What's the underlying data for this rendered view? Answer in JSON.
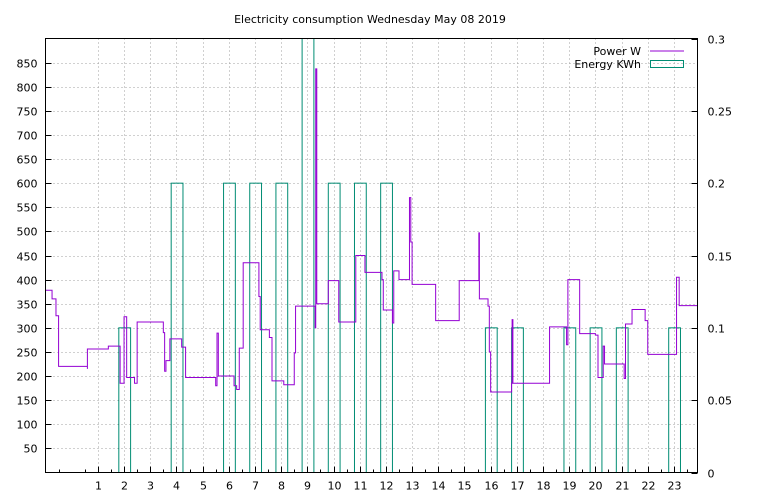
{
  "chart_data": {
    "type": "line",
    "title": "Electricity consumption Wednesday May 08 2019",
    "grid": true,
    "legend_position": "top-right",
    "x": {
      "range": [
        -1,
        23.9
      ],
      "ticks": [
        1,
        2,
        3,
        4,
        5,
        6,
        7,
        8,
        9,
        10,
        11,
        12,
        13,
        14,
        15,
        16,
        17,
        18,
        19,
        20,
        21,
        22,
        23
      ]
    },
    "y_left": {
      "range": [
        0,
        900
      ],
      "ticks": [
        50,
        100,
        150,
        200,
        250,
        300,
        350,
        400,
        450,
        500,
        550,
        600,
        650,
        700,
        750,
        800,
        850
      ]
    },
    "y_right": {
      "range": [
        0,
        0.3
      ],
      "ticks": [
        "0",
        "0.05",
        "0.1",
        "0.15",
        "0.2",
        "0.25",
        "0.3"
      ],
      "tick_values": [
        0,
        0.05,
        0.1,
        0.15,
        0.2,
        0.25,
        0.3
      ]
    },
    "series": [
      {
        "name": "Power W",
        "axis": "left",
        "color": "#9400d3",
        "points": [
          [
            -1.0,
            378
          ],
          [
            -0.75,
            378
          ],
          [
            -0.75,
            360
          ],
          [
            -0.6,
            360
          ],
          [
            -0.6,
            325
          ],
          [
            -0.5,
            325
          ],
          [
            -0.5,
            220
          ],
          [
            0.6,
            220
          ],
          [
            0.6,
            215
          ],
          [
            0.6,
            256
          ],
          [
            1.4,
            256
          ],
          [
            1.4,
            262
          ],
          [
            1.85,
            262
          ],
          [
            1.85,
            185
          ],
          [
            2.0,
            185
          ],
          [
            2.0,
            323
          ],
          [
            2.1,
            323
          ],
          [
            2.1,
            197
          ],
          [
            2.4,
            197
          ],
          [
            2.4,
            185
          ],
          [
            2.5,
            185
          ],
          [
            2.5,
            312
          ],
          [
            3.5,
            312
          ],
          [
            3.5,
            290
          ],
          [
            3.55,
            290
          ],
          [
            3.55,
            210
          ],
          [
            3.6,
            210
          ],
          [
            3.6,
            232
          ],
          [
            3.75,
            232
          ],
          [
            3.75,
            277
          ],
          [
            4.2,
            277
          ],
          [
            4.2,
            260
          ],
          [
            4.35,
            260
          ],
          [
            4.35,
            197
          ],
          [
            5.5,
            197
          ],
          [
            5.5,
            180
          ],
          [
            5.55,
            180
          ],
          [
            5.55,
            289
          ],
          [
            5.6,
            289
          ],
          [
            5.6,
            200
          ],
          [
            6.2,
            200
          ],
          [
            6.2,
            180
          ],
          [
            6.3,
            180
          ],
          [
            6.3,
            172
          ],
          [
            6.4,
            172
          ],
          [
            6.4,
            258
          ],
          [
            6.55,
            258
          ],
          [
            6.55,
            435
          ],
          [
            7.15,
            435
          ],
          [
            7.15,
            365
          ],
          [
            7.2,
            365
          ],
          [
            7.2,
            296
          ],
          [
            7.55,
            296
          ],
          [
            7.55,
            280
          ],
          [
            7.65,
            280
          ],
          [
            7.65,
            190
          ],
          [
            8.1,
            190
          ],
          [
            8.1,
            182
          ],
          [
            8.5,
            182
          ],
          [
            8.5,
            248
          ],
          [
            8.55,
            248
          ],
          [
            8.55,
            345
          ],
          [
            9.3,
            345
          ],
          [
            9.3,
            300
          ],
          [
            9.32,
            300
          ],
          [
            9.32,
            837
          ],
          [
            9.36,
            837
          ],
          [
            9.36,
            350
          ],
          [
            9.8,
            350
          ],
          [
            9.8,
            398
          ],
          [
            10.2,
            398
          ],
          [
            10.2,
            312
          ],
          [
            10.85,
            312
          ],
          [
            10.85,
            450
          ],
          [
            11.2,
            450
          ],
          [
            11.2,
            415
          ],
          [
            11.85,
            415
          ],
          [
            11.85,
            400
          ],
          [
            11.9,
            400
          ],
          [
            11.9,
            337
          ],
          [
            12.25,
            337
          ],
          [
            12.25,
            310
          ],
          [
            12.3,
            310
          ],
          [
            12.3,
            418
          ],
          [
            12.5,
            418
          ],
          [
            12.5,
            400
          ],
          [
            12.9,
            400
          ],
          [
            12.9,
            570
          ],
          [
            12.95,
            570
          ],
          [
            12.95,
            478
          ],
          [
            13.0,
            478
          ],
          [
            13.0,
            390
          ],
          [
            13.9,
            390
          ],
          [
            13.9,
            315
          ],
          [
            14.8,
            315
          ],
          [
            14.8,
            398
          ],
          [
            15.55,
            398
          ],
          [
            15.55,
            497
          ],
          [
            15.57,
            497
          ],
          [
            15.57,
            360
          ],
          [
            15.9,
            360
          ],
          [
            15.9,
            345
          ],
          [
            15.95,
            345
          ],
          [
            15.95,
            250
          ],
          [
            16.0,
            250
          ],
          [
            16.0,
            167
          ],
          [
            16.8,
            167
          ],
          [
            16.8,
            185
          ],
          [
            16.82,
            185
          ],
          [
            16.82,
            317
          ],
          [
            16.85,
            317
          ],
          [
            16.85,
            185
          ],
          [
            18.25,
            185
          ],
          [
            18.25,
            302
          ],
          [
            18.9,
            302
          ],
          [
            18.9,
            265
          ],
          [
            18.95,
            265
          ],
          [
            18.95,
            400
          ],
          [
            19.4,
            400
          ],
          [
            19.4,
            288
          ],
          [
            20.0,
            288
          ],
          [
            20.0,
            285
          ],
          [
            20.1,
            285
          ],
          [
            20.1,
            197
          ],
          [
            20.3,
            197
          ],
          [
            20.3,
            262
          ],
          [
            20.35,
            262
          ],
          [
            20.35,
            225
          ],
          [
            21.1,
            225
          ],
          [
            21.1,
            195
          ],
          [
            21.15,
            195
          ],
          [
            21.15,
            308
          ],
          [
            21.4,
            308
          ],
          [
            21.4,
            338
          ],
          [
            21.9,
            338
          ],
          [
            21.9,
            315
          ],
          [
            22.0,
            315
          ],
          [
            22.0,
            245
          ],
          [
            23.1,
            245
          ],
          [
            23.1,
            405
          ],
          [
            23.2,
            405
          ],
          [
            23.2,
            346
          ],
          [
            23.9,
            346
          ]
        ]
      },
      {
        "name": "Energy KWh",
        "axis": "right",
        "color": "#008c73",
        "bars": [
          [
            1.8,
            2.25,
            0.1
          ],
          [
            3.8,
            4.25,
            0.2
          ],
          [
            5.8,
            6.25,
            0.2
          ],
          [
            6.8,
            7.25,
            0.2
          ],
          [
            7.8,
            8.25,
            0.2
          ],
          [
            8.8,
            9.25,
            0.3
          ],
          [
            9.8,
            10.25,
            0.2
          ],
          [
            10.8,
            11.25,
            0.2
          ],
          [
            11.8,
            12.25,
            0.2
          ],
          [
            15.8,
            16.25,
            0.1
          ],
          [
            16.8,
            17.25,
            0.1
          ],
          [
            18.8,
            19.25,
            0.1
          ],
          [
            19.8,
            20.25,
            0.1
          ],
          [
            20.8,
            21.25,
            0.1
          ],
          [
            22.8,
            23.25,
            0.1
          ]
        ]
      }
    ]
  }
}
